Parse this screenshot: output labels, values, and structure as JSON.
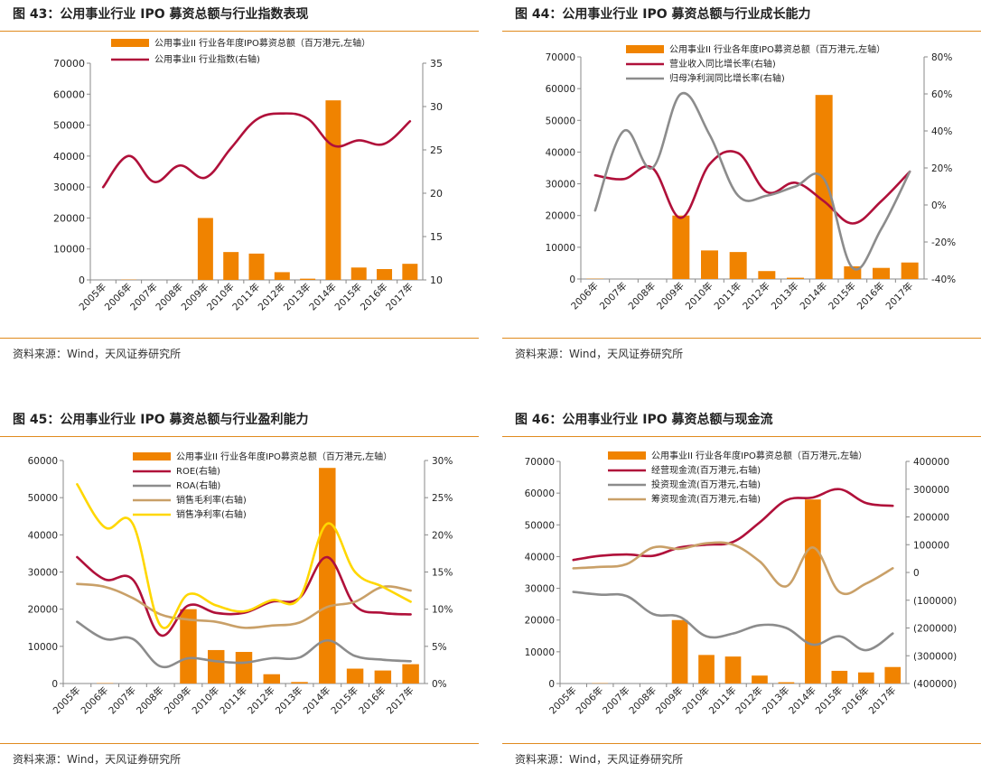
{
  "panels": [
    {
      "title": "图 43：公用事业行业 IPO 募资总额与行业指数表现",
      "source": "资料来源：Wind，天风证券研究所"
    },
    {
      "title": "图 44：公用事业行业 IPO 募资总额与行业成长能力",
      "source": "资料来源：Wind，天风证券研究所"
    },
    {
      "title": "图 45：公用事业行业 IPO 募资总额与行业盈利能力",
      "source": "资料来源：Wind，天风证券研究所"
    },
    {
      "title": "图 46：公用事业行业 IPO 募资总额与现金流",
      "source": "资料来源：Wind，天风证券研究所"
    }
  ],
  "chart_data": [
    {
      "type": "bar+line",
      "categories": [
        "2005年",
        "2006年",
        "2007年",
        "2008年",
        "2009年",
        "2010年",
        "2011年",
        "2012年",
        "2013年",
        "2014年",
        "2015年",
        "2016年",
        "2017年"
      ],
      "left_axis": {
        "min": 0,
        "max": 70000,
        "ticks": [
          "0",
          "10000",
          "20000",
          "30000",
          "40000",
          "50000",
          "60000",
          "70000"
        ]
      },
      "right_axis": {
        "min": 10,
        "max": 35,
        "ticks": [
          "10",
          "15",
          "20",
          "25",
          "30",
          "35"
        ]
      },
      "bar_series": {
        "name": "公用事业II 行业各年度IPO募资总额（百万港元,左轴）",
        "color": "#F08300",
        "values": [
          0,
          100,
          0,
          0,
          20000,
          9000,
          8500,
          2500,
          400,
          58000,
          4000,
          3500,
          5200
        ]
      },
      "line_series": [
        {
          "name": "公用事业II 行业指数(右轴)",
          "color": "#B0103A",
          "values": [
            20.7,
            24.3,
            21.3,
            23.2,
            21.8,
            25.2,
            28.5,
            29.2,
            28.6,
            25.5,
            26.1,
            25.7,
            28.3
          ]
        }
      ]
    },
    {
      "type": "bar+line",
      "categories": [
        "2006年",
        "2007年",
        "2008年",
        "2009年",
        "2010年",
        "2011年",
        "2012年",
        "2013年",
        "2014年",
        "2015年",
        "2016年",
        "2017年"
      ],
      "left_axis": {
        "min": 0,
        "max": 70000,
        "ticks": [
          "0",
          "10000",
          "20000",
          "30000",
          "40000",
          "50000",
          "60000",
          "70000"
        ]
      },
      "right_axis": {
        "min": -40,
        "max": 80,
        "ticks": [
          "-40%",
          "-20%",
          "0%",
          "20%",
          "40%",
          "60%",
          "80%"
        ]
      },
      "bar_series": {
        "name": "公用事业II 行业各年度IPO募资总额（百万港元,左轴）",
        "color": "#F08300",
        "values": [
          100,
          0,
          0,
          20000,
          9000,
          8500,
          2500,
          400,
          58000,
          4000,
          3500,
          5200
        ]
      },
      "line_series": [
        {
          "name": "营业收入同比增长率(右轴)",
          "color": "#B0103A",
          "values": [
            16,
            14,
            20,
            -7,
            22,
            28,
            7,
            12,
            2,
            -10,
            2,
            18
          ]
        },
        {
          "name": "归母净利润同比增长率(右轴)",
          "color": "#8C8C8C",
          "values": [
            -3,
            40,
            20,
            60,
            38,
            5,
            5,
            10,
            14,
            -34,
            -13,
            18
          ]
        }
      ]
    },
    {
      "type": "bar+line",
      "categories": [
        "2005年",
        "2006年",
        "2007年",
        "2008年",
        "2009年",
        "2010年",
        "2011年",
        "2012年",
        "2013年",
        "2014年",
        "2015年",
        "2016年",
        "2017年"
      ],
      "left_axis": {
        "min": 0,
        "max": 60000,
        "ticks": [
          "0",
          "10000",
          "20000",
          "30000",
          "40000",
          "50000",
          "60000"
        ]
      },
      "right_axis": {
        "min": 0,
        "max": 30,
        "ticks": [
          "0%",
          "5%",
          "10%",
          "15%",
          "20%",
          "25%",
          "30%"
        ]
      },
      "bar_series": {
        "name": "公用事业II 行业各年度IPO募资总额（百万港元,左轴）",
        "color": "#F08300",
        "values": [
          0,
          100,
          0,
          0,
          20000,
          9000,
          8500,
          2500,
          400,
          58000,
          4000,
          3500,
          5200
        ]
      },
      "line_series": [
        {
          "name": "ROE(右轴)",
          "color": "#B0103A",
          "values": [
            17,
            14,
            14,
            6.5,
            10.5,
            9.5,
            9.5,
            11,
            11.5,
            17,
            10.5,
            9.5,
            9.3
          ]
        },
        {
          "name": "ROA(右轴)",
          "color": "#8C8C8C",
          "values": [
            8.3,
            6,
            6,
            2.3,
            3.4,
            3,
            2.8,
            3.4,
            3.5,
            5.8,
            3.7,
            3.2,
            3
          ]
        },
        {
          "name": "销售毛利率(右轴)",
          "color": "#C9A068",
          "values": [
            13.4,
            13,
            11.5,
            9.3,
            8.6,
            8.3,
            7.5,
            7.8,
            8.2,
            10.3,
            11,
            13,
            12.5
          ]
        },
        {
          "name": "销售净利率(右轴)",
          "color": "#FFD700",
          "values": [
            26.8,
            21,
            21.5,
            7.8,
            12,
            10.5,
            9.7,
            11.2,
            11.5,
            21.5,
            15,
            13,
            11
          ]
        }
      ]
    },
    {
      "type": "bar+line",
      "categories": [
        "2005年",
        "2006年",
        "2007年",
        "2008年",
        "2009年",
        "2010年",
        "2011年",
        "2012年",
        "2013年",
        "2014年",
        "2015年",
        "2016年",
        "2017年"
      ],
      "left_axis": {
        "min": 0,
        "max": 70000,
        "ticks": [
          "0",
          "10000",
          "20000",
          "30000",
          "40000",
          "50000",
          "60000",
          "70000"
        ]
      },
      "right_axis": {
        "min": -400000,
        "max": 400000,
        "ticks": [
          "(400000)",
          "(300000)",
          "(200000)",
          "(100000)",
          "0",
          "100000",
          "200000",
          "300000",
          "400000"
        ]
      },
      "bar_series": {
        "name": "公用事业II 行业各年度IPO募资总额（百万港元,左轴）",
        "color": "#F08300",
        "values": [
          0,
          100,
          0,
          0,
          20000,
          9000,
          8500,
          2500,
          400,
          58000,
          4000,
          3500,
          5200
        ]
      },
      "line_series": [
        {
          "name": "经营现金流(百万港元,右轴)",
          "color": "#B0103A",
          "values": [
            45000,
            60000,
            65000,
            60000,
            90000,
            100000,
            110000,
            180000,
            260000,
            270000,
            300000,
            250000,
            240000
          ]
        },
        {
          "name": "投资现金流(百万港元,右轴)",
          "color": "#8C8C8C",
          "values": [
            -70000,
            -80000,
            -85000,
            -150000,
            -160000,
            -230000,
            -220000,
            -190000,
            -200000,
            -260000,
            -230000,
            -280000,
            -220000
          ]
        },
        {
          "name": "筹资现金流(百万港元,右轴)",
          "color": "#C9A068",
          "values": [
            15000,
            20000,
            30000,
            90000,
            85000,
            105000,
            100000,
            40000,
            -50000,
            90000,
            -70000,
            -40000,
            15000
          ]
        }
      ]
    }
  ]
}
